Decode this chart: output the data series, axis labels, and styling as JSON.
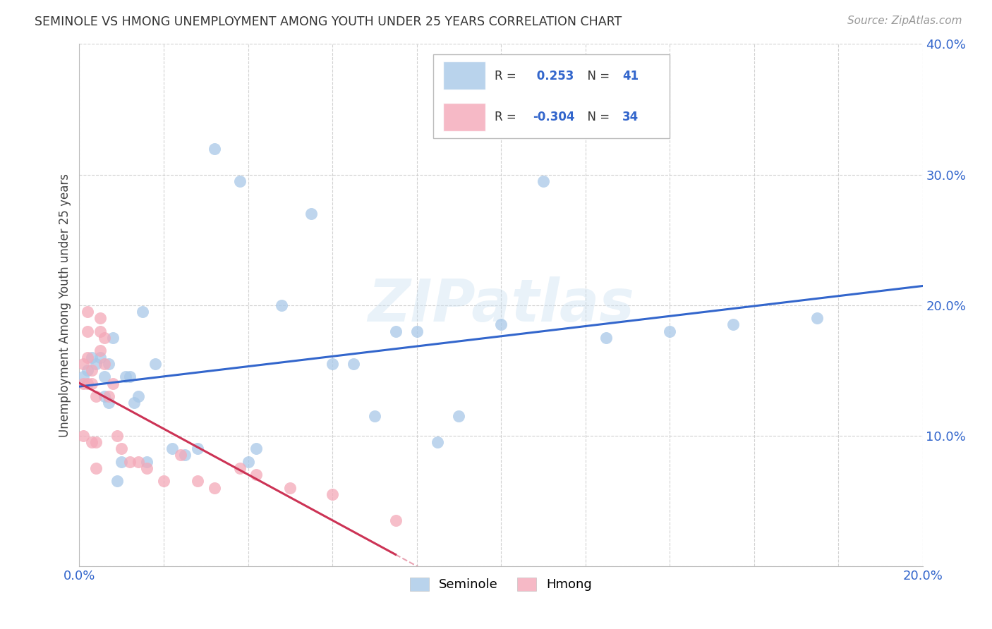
{
  "title": "SEMINOLE VS HMONG UNEMPLOYMENT AMONG YOUTH UNDER 25 YEARS CORRELATION CHART",
  "source": "Source: ZipAtlas.com",
  "ylabel": "Unemployment Among Youth under 25 years",
  "xlim": [
    0.0,
    0.2
  ],
  "ylim": [
    0.0,
    0.4
  ],
  "seminole_R": 0.253,
  "seminole_N": 41,
  "hmong_R": -0.304,
  "hmong_N": 34,
  "seminole_color": "#a8c8e8",
  "hmong_color": "#f4a8b8",
  "seminole_line_color": "#3366cc",
  "hmong_line_color": "#cc3355",
  "watermark": "ZIPatlas",
  "seminole_x": [
    0.001,
    0.002,
    0.003,
    0.004,
    0.005,
    0.006,
    0.006,
    0.007,
    0.007,
    0.008,
    0.009,
    0.01,
    0.011,
    0.012,
    0.013,
    0.014,
    0.015,
    0.016,
    0.018,
    0.022,
    0.025,
    0.028,
    0.032,
    0.038,
    0.04,
    0.042,
    0.048,
    0.055,
    0.06,
    0.065,
    0.07,
    0.075,
    0.08,
    0.085,
    0.09,
    0.1,
    0.11,
    0.125,
    0.14,
    0.155,
    0.175
  ],
  "seminole_y": [
    0.145,
    0.15,
    0.16,
    0.155,
    0.16,
    0.145,
    0.13,
    0.155,
    0.125,
    0.175,
    0.065,
    0.08,
    0.145,
    0.145,
    0.125,
    0.13,
    0.195,
    0.08,
    0.155,
    0.09,
    0.085,
    0.09,
    0.32,
    0.295,
    0.08,
    0.09,
    0.2,
    0.27,
    0.155,
    0.155,
    0.115,
    0.18,
    0.18,
    0.095,
    0.115,
    0.185,
    0.295,
    0.175,
    0.18,
    0.185,
    0.19
  ],
  "hmong_x": [
    0.001,
    0.001,
    0.001,
    0.002,
    0.002,
    0.002,
    0.002,
    0.003,
    0.003,
    0.003,
    0.004,
    0.004,
    0.004,
    0.005,
    0.005,
    0.005,
    0.006,
    0.006,
    0.007,
    0.008,
    0.009,
    0.01,
    0.012,
    0.014,
    0.016,
    0.02,
    0.024,
    0.028,
    0.032,
    0.038,
    0.042,
    0.05,
    0.06,
    0.075
  ],
  "hmong_y": [
    0.155,
    0.14,
    0.1,
    0.195,
    0.18,
    0.16,
    0.14,
    0.15,
    0.14,
    0.095,
    0.13,
    0.095,
    0.075,
    0.19,
    0.18,
    0.165,
    0.175,
    0.155,
    0.13,
    0.14,
    0.1,
    0.09,
    0.08,
    0.08,
    0.075,
    0.065,
    0.085,
    0.065,
    0.06,
    0.075,
    0.07,
    0.06,
    0.055,
    0.035
  ]
}
